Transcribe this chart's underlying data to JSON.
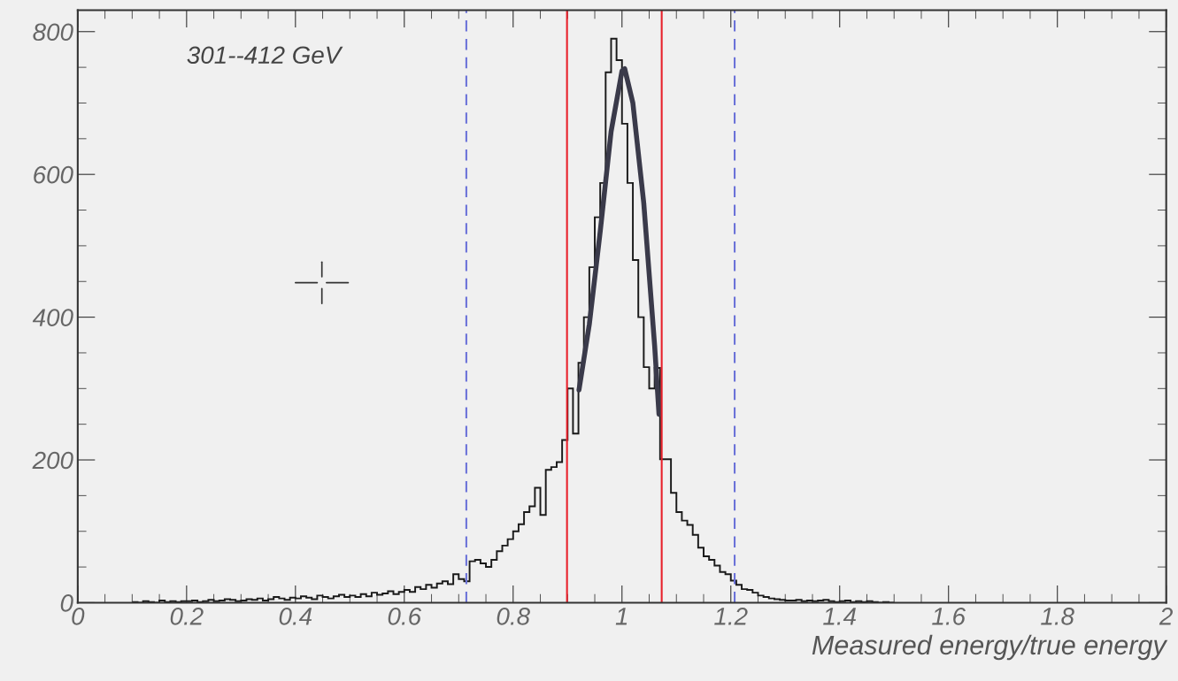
{
  "chart_data": {
    "type": "histogram",
    "xlabel": "Measured energy/true energy",
    "annotations": [
      {
        "text": "301--412 GeV"
      }
    ],
    "xlim": [
      0,
      2
    ],
    "ylim": [
      0,
      830
    ],
    "xticks": [
      0,
      0.2,
      0.4,
      0.6,
      0.8,
      1,
      1.2,
      1.4,
      1.6,
      1.8,
      2
    ],
    "yticks": [
      0,
      200,
      400,
      600,
      800
    ],
    "grid": false,
    "legend": false,
    "series": [
      {
        "color": "#1a1a1a",
        "bins": [
          0.1,
          0.11,
          0.12,
          0.13,
          0.14,
          0.15,
          0.16,
          0.17,
          0.18,
          0.19,
          0.2,
          0.21,
          0.22,
          0.23,
          0.24,
          0.25,
          0.26,
          0.27,
          0.28,
          0.29,
          0.3,
          0.31,
          0.32,
          0.33,
          0.34,
          0.35,
          0.36,
          0.37,
          0.38,
          0.39,
          0.4,
          0.41,
          0.42,
          0.43,
          0.44,
          0.45,
          0.46,
          0.47,
          0.48,
          0.49,
          0.5,
          0.51,
          0.52,
          0.53,
          0.54,
          0.55,
          0.56,
          0.57,
          0.58,
          0.59,
          0.6,
          0.61,
          0.62,
          0.63,
          0.64,
          0.65,
          0.66,
          0.67,
          0.68,
          0.69,
          0.7,
          0.71,
          0.72,
          0.73,
          0.74,
          0.75,
          0.76,
          0.77,
          0.78,
          0.79,
          0.8,
          0.81,
          0.82,
          0.83,
          0.84,
          0.85,
          0.86,
          0.87,
          0.88,
          0.89,
          0.9,
          0.91,
          0.92,
          0.93,
          0.94,
          0.95,
          0.96,
          0.97,
          0.98,
          0.99,
          1.0,
          1.01,
          1.02,
          1.03,
          1.04,
          1.05,
          1.06,
          1.07,
          1.08,
          1.09,
          1.1,
          1.11,
          1.12,
          1.13,
          1.14,
          1.15,
          1.16,
          1.17,
          1.18,
          1.19,
          1.2,
          1.21,
          1.22,
          1.23,
          1.24,
          1.25,
          1.26,
          1.27,
          1.28,
          1.29,
          1.3,
          1.31,
          1.32,
          1.33,
          1.34,
          1.35,
          1.36,
          1.37,
          1.38,
          1.39,
          1.4,
          1.41,
          1.42,
          1.43,
          1.44,
          1.45,
          1.46,
          1.47,
          1.48,
          1.49,
          1.5
        ],
        "values": [
          1,
          0,
          2,
          1,
          0,
          3,
          1,
          2,
          1,
          2,
          2,
          3,
          1,
          2,
          4,
          2,
          3,
          5,
          4,
          2,
          3,
          5,
          4,
          6,
          3,
          5,
          8,
          6,
          4,
          7,
          6,
          9,
          7,
          5,
          10,
          8,
          6,
          9,
          11,
          8,
          10,
          8,
          12,
          9,
          14,
          11,
          13,
          16,
          12,
          15,
          18,
          15,
          22,
          19,
          25,
          21,
          27,
          30,
          26,
          40,
          33,
          30,
          58,
          60,
          55,
          50,
          60,
          72,
          80,
          89,
          100,
          110,
          127,
          135,
          161,
          123,
          186,
          190,
          197,
          228,
          300,
          237,
          336,
          400,
          470,
          540,
          588,
          743,
          790,
          760,
          671,
          588,
          480,
          400,
          330,
          300,
          329,
          201,
          201,
          154,
          127,
          115,
          109,
          95,
          77,
          65,
          60,
          52,
          43,
          40,
          31,
          25,
          19,
          18,
          14,
          10,
          8,
          6,
          5,
          4,
          3,
          3,
          4,
          2,
          3,
          2,
          3,
          4,
          2,
          1,
          2,
          3,
          1,
          2,
          1,
          2,
          1,
          0,
          1,
          0
        ]
      },
      {
        "type": "line",
        "color": "#3a3a4a",
        "x": [
          0.921,
          0.94,
          0.96,
          0.98,
          1.0,
          1.005,
          1.02,
          1.04,
          1.06,
          1.068
        ],
        "values": [
          298,
          390,
          520,
          660,
          745,
          748,
          700,
          560,
          360,
          264
        ]
      }
    ],
    "ref_lines": [
      {
        "axis": "x",
        "value": 0.899,
        "color": "#e8202a",
        "line_style": "solid"
      },
      {
        "axis": "x",
        "value": 1.073,
        "color": "#e8202a",
        "line_style": "solid"
      },
      {
        "axis": "x",
        "value": 0.714,
        "color": "#6b72d8",
        "line_style": "dashed"
      },
      {
        "axis": "x",
        "value": 1.207,
        "color": "#6b72d8",
        "line_style": "dashed"
      }
    ]
  }
}
